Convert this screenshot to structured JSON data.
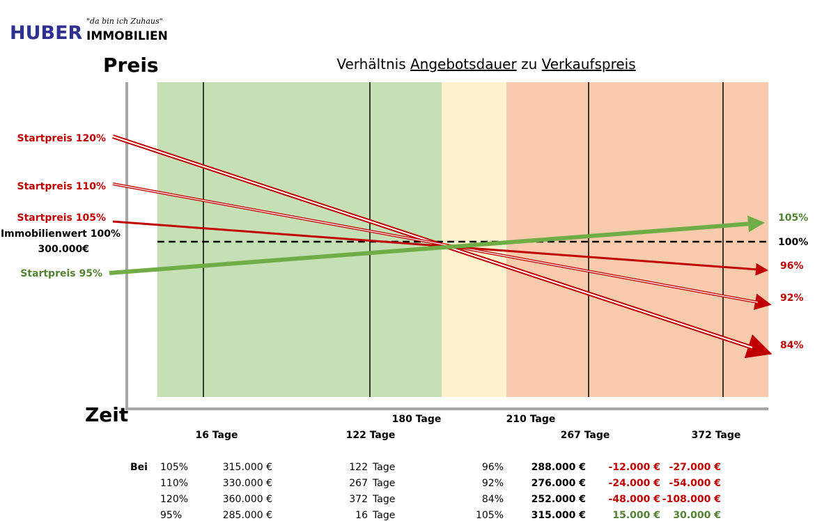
{
  "logo": {
    "name": "HUBER",
    "suffix": "IMMOBILIEN",
    "slogan": "\"da bin ich Zuhaus\""
  },
  "title": {
    "prefix": "Verhältnis ",
    "term1": "Angebotsdauer",
    "middle": " zu ",
    "term2": "Verkaufspreis"
  },
  "y_axis_label": "Preis",
  "x_axis_label": "Zeit",
  "start_labels": [
    "Startpreis 120%",
    "Startpreis 110%",
    "Startpreis 105%",
    "Startpreis 95%"
  ],
  "value_label": "Immobilienwert 100%",
  "value_amount": "300.000€",
  "end_labels": [
    "105%",
    "100%",
    "96%",
    "92%",
    "84%"
  ],
  "day_markers": [
    "16 Tage",
    "122 Tage",
    "180 Tage",
    "210 Tage",
    "267 Tage",
    "372 Tage"
  ],
  "table": {
    "lead": "Bei",
    "rows": [
      [
        "105%",
        "315.000 €",
        "122",
        "Tage",
        "96%",
        "288.000 €",
        "-12.000 €",
        "-27.000 €"
      ],
      [
        "110%",
        "330.000 €",
        "267",
        "Tage",
        "92%",
        "276.000 €",
        "-24.000 €",
        "-54.000 €"
      ],
      [
        "120%",
        "360.000 €",
        "372",
        "Tage",
        "84%",
        "252.000 €",
        "-48.000 €",
        "-108.000 €"
      ],
      [
        "95%",
        "285.000 €",
        "16",
        "Tage",
        "105%",
        "315.000 €",
        "15.000 €",
        "30.000 €"
      ]
    ]
  }
}
